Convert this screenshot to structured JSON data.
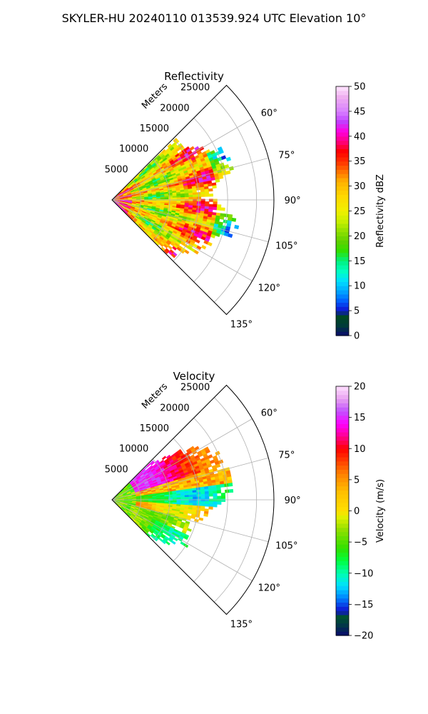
{
  "suptitle": "SKYLER-HU  20240110  013539.924 UTC Elevation 10°",
  "chart_data": [
    {
      "type": "heatmap",
      "title": "Reflectivity",
      "radial_axis_label": "Meters",
      "radial_ticks": [
        5000,
        10000,
        15000,
        20000,
        25000
      ],
      "radial_tick_labels": [
        "5000",
        "10000",
        "15000",
        "20000",
        "25000"
      ],
      "rlim": [
        0,
        28000
      ],
      "azimuth_ticks": [
        60,
        75,
        90,
        105,
        120,
        135
      ],
      "azimuth_tick_labels": [
        "60°",
        "75°",
        "90°",
        "105°",
        "120°",
        "135°"
      ],
      "azimuth_range": [
        45,
        135
      ],
      "grid": true,
      "colorbar": {
        "label": "Reflectivity dBZ",
        "range": [
          0,
          50
        ],
        "ticks": [
          0,
          5,
          10,
          15,
          20,
          25,
          30,
          35,
          40,
          45,
          50
        ],
        "tick_labels": [
          "0",
          "5",
          "10",
          "15",
          "20",
          "25",
          "30",
          "35",
          "40",
          "45",
          "50"
        ],
        "stops": [
          {
            "v": 0,
            "c": "#0a0a6e"
          },
          {
            "v": 2,
            "c": "#003a3a"
          },
          {
            "v": 4,
            "c": "#004a20"
          },
          {
            "v": 5,
            "c": "#1010d0"
          },
          {
            "v": 7,
            "c": "#0060ff"
          },
          {
            "v": 9,
            "c": "#00a8ff"
          },
          {
            "v": 11,
            "c": "#00e0ff"
          },
          {
            "v": 13,
            "c": "#00ffc0"
          },
          {
            "v": 15,
            "c": "#00f080"
          },
          {
            "v": 17,
            "c": "#30e000"
          },
          {
            "v": 19,
            "c": "#60d000"
          },
          {
            "v": 21,
            "c": "#90e000"
          },
          {
            "v": 23,
            "c": "#c8f000"
          },
          {
            "v": 25,
            "c": "#f0f000"
          },
          {
            "v": 28,
            "c": "#ffd800"
          },
          {
            "v": 31,
            "c": "#ffb000"
          },
          {
            "v": 33,
            "c": "#ff7000"
          },
          {
            "v": 35,
            "c": "#ff3000"
          },
          {
            "v": 37,
            "c": "#ff0000"
          },
          {
            "v": 39,
            "c": "#ff0080"
          },
          {
            "v": 41,
            "c": "#ff00e0"
          },
          {
            "v": 43,
            "c": "#c040ff"
          },
          {
            "v": 45,
            "c": "#d880ff"
          },
          {
            "v": 48,
            "c": "#f0b0f0"
          },
          {
            "v": 50,
            "c": "#ffe8ff"
          }
        ]
      },
      "field": "reflectivity"
    },
    {
      "type": "heatmap",
      "title": "Velocity",
      "radial_axis_label": "Meters",
      "radial_ticks": [
        5000,
        10000,
        15000,
        20000,
        25000
      ],
      "radial_tick_labels": [
        "5000",
        "10000",
        "15000",
        "20000",
        "25000"
      ],
      "rlim": [
        0,
        28000
      ],
      "azimuth_ticks": [
        60,
        75,
        90,
        105,
        120,
        135
      ],
      "azimuth_tick_labels": [
        "60°",
        "75°",
        "90°",
        "105°",
        "120°",
        "135°"
      ],
      "azimuth_range": [
        45,
        135
      ],
      "grid": true,
      "colorbar": {
        "label": "Velocity (m/s)",
        "range": [
          -20,
          20
        ],
        "ticks": [
          -20,
          -15,
          -10,
          -5,
          0,
          5,
          10,
          15,
          20
        ],
        "tick_labels": [
          "−20",
          "−15",
          "−10",
          "−5",
          "0",
          "5",
          "10",
          "15",
          "20"
        ],
        "stops": [
          {
            "v": -20,
            "c": "#0a0a6e"
          },
          {
            "v": -18,
            "c": "#004040"
          },
          {
            "v": -17,
            "c": "#005030"
          },
          {
            "v": -16,
            "c": "#1010d0"
          },
          {
            "v": -14,
            "c": "#0080ff"
          },
          {
            "v": -12,
            "c": "#00e0ff"
          },
          {
            "v": -10,
            "c": "#00ffb0"
          },
          {
            "v": -8,
            "c": "#00ff40"
          },
          {
            "v": -6,
            "c": "#30e000"
          },
          {
            "v": -3,
            "c": "#90e000"
          },
          {
            "v": -1,
            "c": "#e0f000"
          },
          {
            "v": 0,
            "c": "#ffe000"
          },
          {
            "v": 3,
            "c": "#ffc000"
          },
          {
            "v": 6,
            "c": "#ff8000"
          },
          {
            "v": 8,
            "c": "#ff4000"
          },
          {
            "v": 10,
            "c": "#ff0000"
          },
          {
            "v": 12,
            "c": "#ff0090"
          },
          {
            "v": 14,
            "c": "#ff00ff"
          },
          {
            "v": 16,
            "c": "#c050ff"
          },
          {
            "v": 18,
            "c": "#e8a0f0"
          },
          {
            "v": 20,
            "c": "#ffe0ff"
          }
        ]
      },
      "field": "velocity"
    }
  ]
}
